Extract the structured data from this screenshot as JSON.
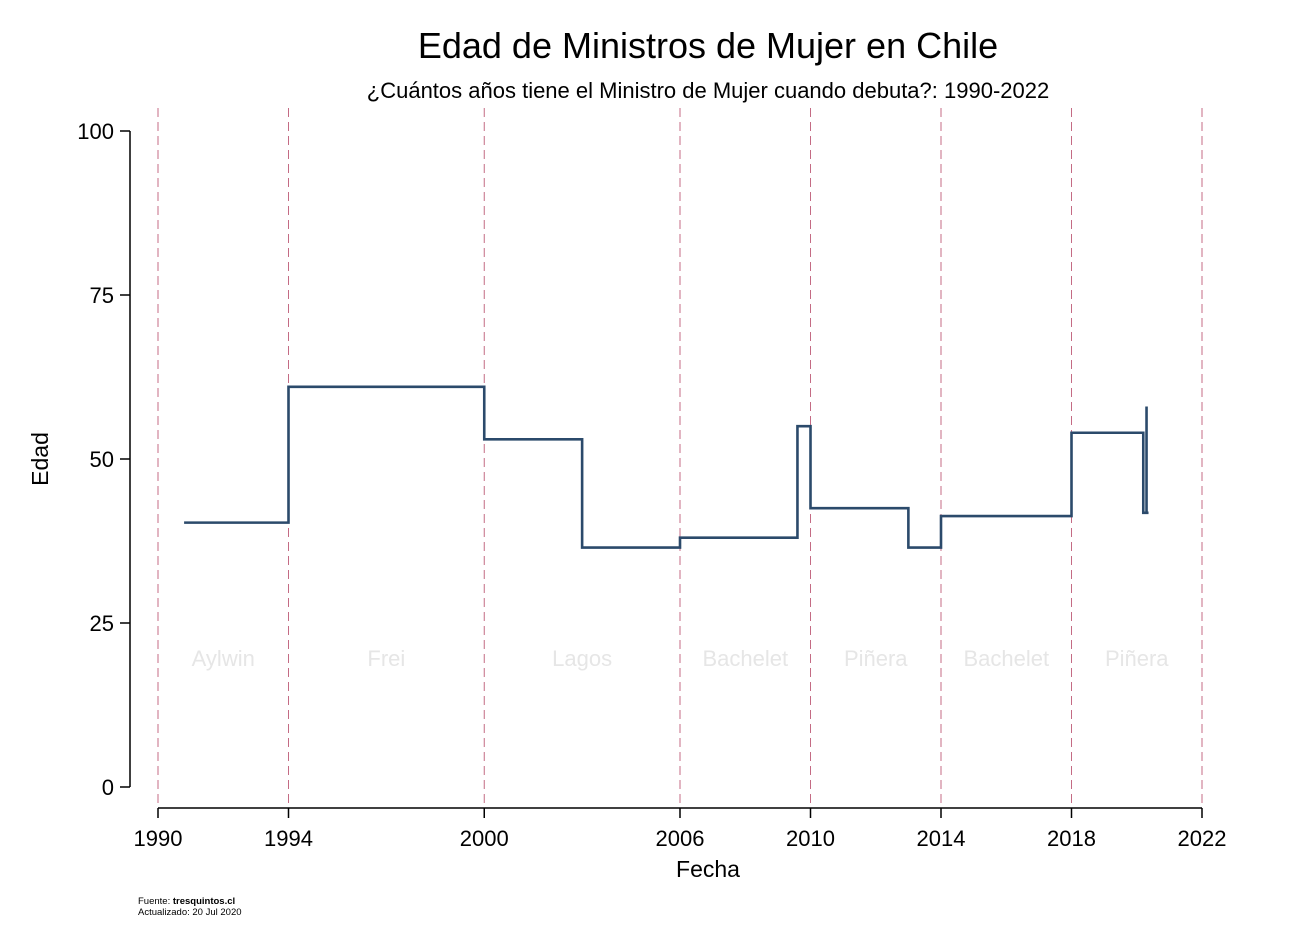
{
  "chart_data": {
    "type": "line",
    "step": "post",
    "title": "Edad de Ministros de Mujer en Chile",
    "subtitle": "¿Cuántos años tiene el Ministro de Mujer cuando debuta?: 1990-2022",
    "xlabel": "Fecha",
    "ylabel": "Edad",
    "xlim": [
      1990,
      2022
    ],
    "ylim": [
      0,
      100
    ],
    "x_ticks": [
      1990,
      1994,
      2000,
      2006,
      2010,
      2014,
      2018,
      2022
    ],
    "y_ticks": [
      0,
      25,
      50,
      75,
      100
    ],
    "grid": false,
    "reference_lines": {
      "x": [
        1990,
        1994,
        2000,
        2006,
        2010,
        2014,
        2018,
        2022
      ],
      "color": "#c46b84",
      "style": "dashed"
    },
    "periods": [
      {
        "label": "Aylwin",
        "start": 1990,
        "end": 1994
      },
      {
        "label": "Frei",
        "start": 1994,
        "end": 2000
      },
      {
        "label": "Lagos",
        "start": 2000,
        "end": 2006
      },
      {
        "label": "Bachelet",
        "start": 2006,
        "end": 2010
      },
      {
        "label": "Piñera",
        "start": 2010,
        "end": 2014
      },
      {
        "label": "Bachelet",
        "start": 2014,
        "end": 2018
      },
      {
        "label": "Piñera",
        "start": 2018,
        "end": 2022
      }
    ],
    "series": [
      {
        "color": "#2b4a6b",
        "points": [
          {
            "x": 1990.8,
            "y": 40.3
          },
          {
            "x": 1994.0,
            "y": 61.0
          },
          {
            "x": 2000.0,
            "y": 53.0
          },
          {
            "x": 2003.0,
            "y": 36.5
          },
          {
            "x": 2006.0,
            "y": 38.0
          },
          {
            "x": 2009.6,
            "y": 55.0
          },
          {
            "x": 2010.0,
            "y": 42.5
          },
          {
            "x": 2013.0,
            "y": 36.5
          },
          {
            "x": 2014.0,
            "y": 41.3
          },
          {
            "x": 2018.0,
            "y": 54.0
          },
          {
            "x": 2020.2,
            "y": 41.8
          },
          {
            "x": 2020.3,
            "y": 58.0
          },
          {
            "x": 2020.3,
            "y": 41.8
          }
        ]
      }
    ]
  },
  "footer": {
    "source_label": "Fuente: ",
    "source_value": "tresquintos.cl",
    "updated": "Actualizado: 20 Jul 2020"
  }
}
